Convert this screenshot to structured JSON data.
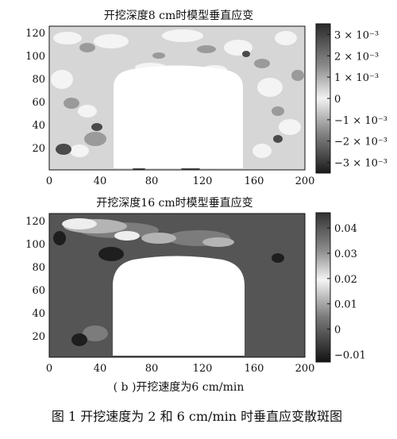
{
  "figure_caption": "图 1   开挖速度为 2 和 6  cm/min 时垂直应变散斑图",
  "subfigure_caption": "( b )开挖速度为6 cm/min",
  "chart_data": [
    {
      "type": "heatmap",
      "title": "开挖深度8 cm时模型垂直应变",
      "xlim": [
        0,
        200
      ],
      "ylim": [
        0,
        125
      ],
      "xticks": [
        "0",
        "40",
        "80",
        "120",
        "160",
        "200"
      ],
      "yticks": [
        "20",
        "40",
        "60",
        "80",
        "100",
        "120"
      ],
      "colorbar": {
        "range": [
          -0.0035,
          0.0035
        ],
        "ticks": [
          {
            "value": 0.003,
            "label": "3 × 10⁻³"
          },
          {
            "value": 0.002,
            "label": "2 × 10⁻³"
          },
          {
            "value": 0.001,
            "label": "1 × 10⁻³"
          },
          {
            "value": 0,
            "label": "0"
          },
          {
            "value": -0.001,
            "label": "−1 × 10⁻³"
          },
          {
            "value": -0.002,
            "label": "−2 × 10⁻³"
          },
          {
            "value": -0.003,
            "label": "−3 × 10⁻³"
          }
        ]
      },
      "excavated_region": {
        "x_range": [
          50,
          152
        ],
        "y_range": [
          3,
          90
        ],
        "arch_top": 90
      }
    },
    {
      "type": "heatmap",
      "title": "开挖深度16 cm时模型垂直应变",
      "xlim": [
        0,
        200
      ],
      "ylim": [
        0,
        125
      ],
      "xticks": [
        "0",
        "40",
        "80",
        "120",
        "160",
        "200"
      ],
      "yticks": [
        "20",
        "40",
        "60",
        "80",
        "100",
        "120"
      ],
      "colorbar": {
        "range": [
          -0.013,
          0.046
        ],
        "ticks": [
          {
            "value": 0.04,
            "label": "0.04"
          },
          {
            "value": 0.03,
            "label": "0.03"
          },
          {
            "value": 0.02,
            "label": "0.02"
          },
          {
            "value": 0.01,
            "label": "0.01"
          },
          {
            "value": 0,
            "label": "0"
          },
          {
            "value": -0.01,
            "label": "−0.01"
          }
        ]
      },
      "excavated_region": {
        "x_range": [
          50,
          153
        ],
        "y_range": [
          3,
          88
        ],
        "arch_top": 88
      }
    }
  ]
}
